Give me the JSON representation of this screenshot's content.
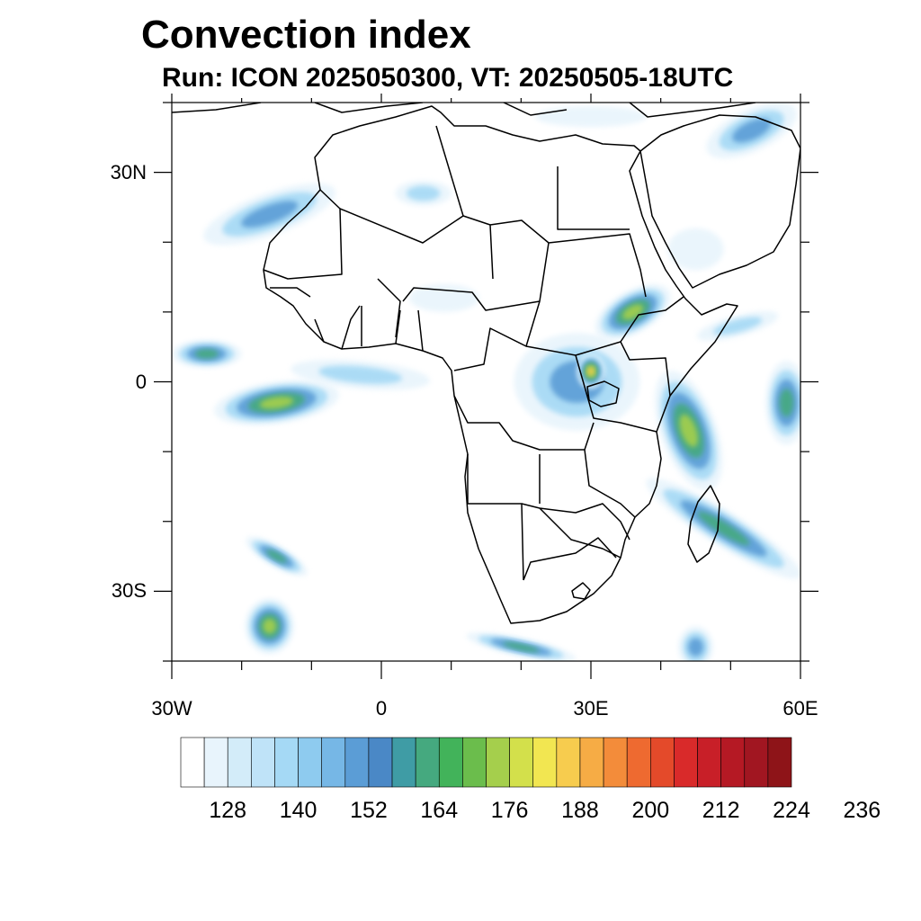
{
  "title": "Convection index",
  "subtitle": "Run: ICON 2025050300,  VT: 20250505-18UTC",
  "map": {
    "extent": {
      "lon_min": -30,
      "lon_max": 60,
      "lat_min": -40,
      "lat_max": 40
    },
    "lat_ticks": [
      {
        "lat": 30,
        "label": "30N"
      },
      {
        "lat": 0,
        "label": "0"
      },
      {
        "lat": -30,
        "label": "30S"
      }
    ],
    "lon_ticks": [
      {
        "lon": -30,
        "label": "30W"
      },
      {
        "lon": 0,
        "label": "0"
      },
      {
        "lon": 30,
        "label": "30E"
      },
      {
        "lon": 60,
        "label": "60E"
      }
    ],
    "minor_tick_spacing_deg": 10,
    "convection_regions": [
      {
        "lon": -16,
        "lat": 24,
        "rlon": 10,
        "rlat": 3,
        "rot": -20,
        "peak": 156
      },
      {
        "lon": -25,
        "lat": 4,
        "rlon": 5,
        "rlat": 2,
        "rot": 0,
        "peak": 170
      },
      {
        "lon": -15,
        "lat": -3,
        "rlon": 9,
        "rlat": 3,
        "rot": -8,
        "peak": 180
      },
      {
        "lon": -3,
        "lat": 1,
        "rlon": 10,
        "rlat": 2,
        "rot": 5,
        "peak": 140
      },
      {
        "lon": 28,
        "lat": 0,
        "rlon": 9,
        "rlat": 7,
        "rot": 0,
        "peak": 148
      },
      {
        "lon": 30,
        "lat": 1.5,
        "rlon": 2,
        "rlat": 2.5,
        "rot": 0,
        "peak": 184
      },
      {
        "lon": 36,
        "lat": 10,
        "rlon": 3,
        "rlat": 6,
        "rot": 60,
        "peak": 180
      },
      {
        "lon": 44,
        "lat": -7,
        "rlon": 4,
        "rlat": 9,
        "rot": -20,
        "peak": 172
      },
      {
        "lon": 49,
        "lat": -21,
        "rlon": 13,
        "rlat": 2.5,
        "rot": 32,
        "peak": 170
      },
      {
        "lon": 58,
        "lat": -3,
        "rlon": 3,
        "rlat": 6,
        "rot": 0,
        "peak": 160
      },
      {
        "lon": 51,
        "lat": 8,
        "rlon": 6,
        "rlat": 1.5,
        "rot": -15,
        "peak": 140
      },
      {
        "lon": 53,
        "lat": 36,
        "rlon": 7,
        "rlat": 3,
        "rot": -25,
        "peak": 154
      },
      {
        "lon": 6,
        "lat": 27,
        "rlon": 4,
        "rlat": 1.8,
        "rot": 0,
        "peak": 138
      },
      {
        "lon": -15,
        "lat": -25,
        "rlon": 5,
        "rlat": 1.5,
        "rot": 30,
        "peak": 165
      },
      {
        "lon": -16,
        "lat": -35,
        "rlon": 3.5,
        "rlat": 4,
        "rot": 0,
        "peak": 176
      },
      {
        "lon": 20,
        "lat": -38,
        "rlon": 8,
        "rlat": 1.3,
        "rot": 12,
        "peak": 166
      },
      {
        "lon": 45,
        "lat": -38,
        "rlon": 2.5,
        "rlat": 3,
        "rot": 0,
        "peak": 150
      },
      {
        "lon": 9,
        "lat": 12,
        "rlon": 5,
        "rlat": 2,
        "rot": 0,
        "peak": 132
      },
      {
        "lon": 30,
        "lat": 38,
        "rlon": 8,
        "rlat": 1.5,
        "rot": 0,
        "peak": 132
      },
      {
        "lon": 45,
        "lat": 19,
        "rlon": 4,
        "rlat": 3,
        "rot": 0,
        "peak": 130
      }
    ]
  },
  "colorbar": {
    "colors": [
      "#ffffff",
      "#e8f4fc",
      "#d3ecf9",
      "#bfe3f8",
      "#a5d9f5",
      "#8ecbef",
      "#76b7e6",
      "#5b9dd6",
      "#4a88c6",
      "#3f9ca5",
      "#45a97f",
      "#42b35a",
      "#6bbd4c",
      "#a5cf4c",
      "#d3e04b",
      "#f2e651",
      "#f7cc4e",
      "#f6ac45",
      "#f38c3a",
      "#ee6a30",
      "#e44a2a",
      "#d92a2a",
      "#c81f28",
      "#b51924",
      "#a11621",
      "#8e1418"
    ],
    "labels": [
      "128",
      "140",
      "152",
      "164",
      "176",
      "188",
      "200",
      "212",
      "224",
      "236"
    ]
  }
}
